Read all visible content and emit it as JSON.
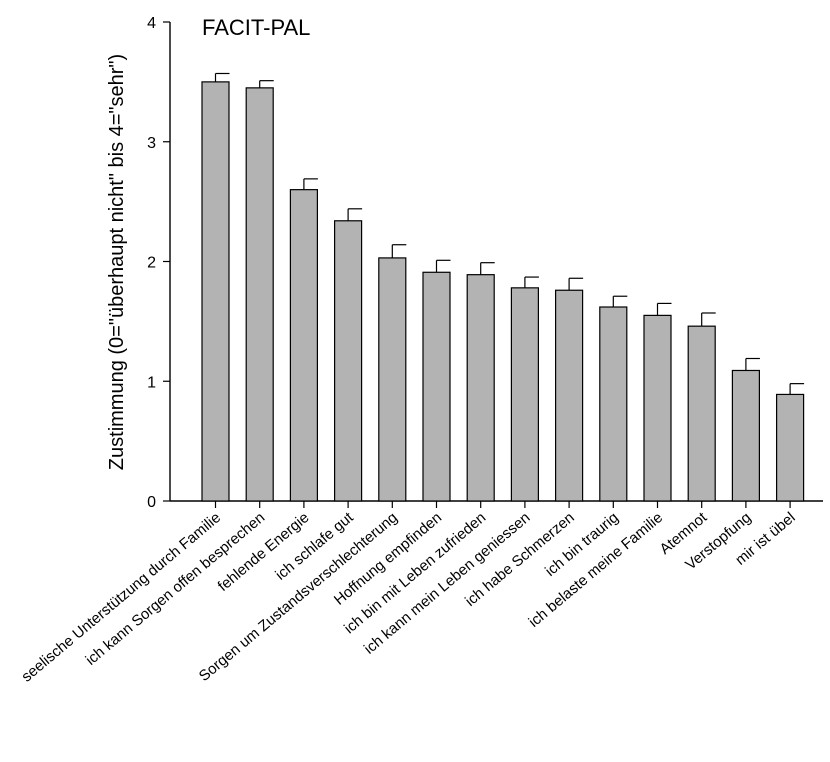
{
  "chart_data": {
    "type": "bar",
    "title": "FACIT-PAL",
    "xlabel": "",
    "ylabel": "Zustimmung (0=\"überhaupt nicht\" bis 4=\"sehr\")",
    "ylim": [
      0,
      4
    ],
    "yticks": [
      0,
      1,
      2,
      3,
      4
    ],
    "grid": false,
    "bar_color": "#b3b3b3",
    "categories": [
      "seelische Unterstützung durch Familie",
      "ich kann Sorgen offen besprechen",
      "fehlende Energie",
      "ich schlafe gut",
      "Sorgen um Zustandsverschlechterung",
      "Hoffnung empfinden",
      "ich bin mit Leben zufrieden",
      "ich kann mein Leben geniessen",
      "ich habe Schmerzen",
      "ich bin traurig",
      "ich belaste meine Familie",
      "Atemnot",
      "Verstopfung",
      "mir ist übel"
    ],
    "values": [
      3.5,
      3.45,
      2.6,
      2.34,
      2.03,
      1.91,
      1.89,
      1.78,
      1.76,
      1.62,
      1.55,
      1.46,
      1.09,
      0.89
    ],
    "errors": [
      0.07,
      0.06,
      0.09,
      0.1,
      0.11,
      0.1,
      0.1,
      0.09,
      0.1,
      0.09,
      0.1,
      0.11,
      0.1,
      0.09
    ]
  }
}
